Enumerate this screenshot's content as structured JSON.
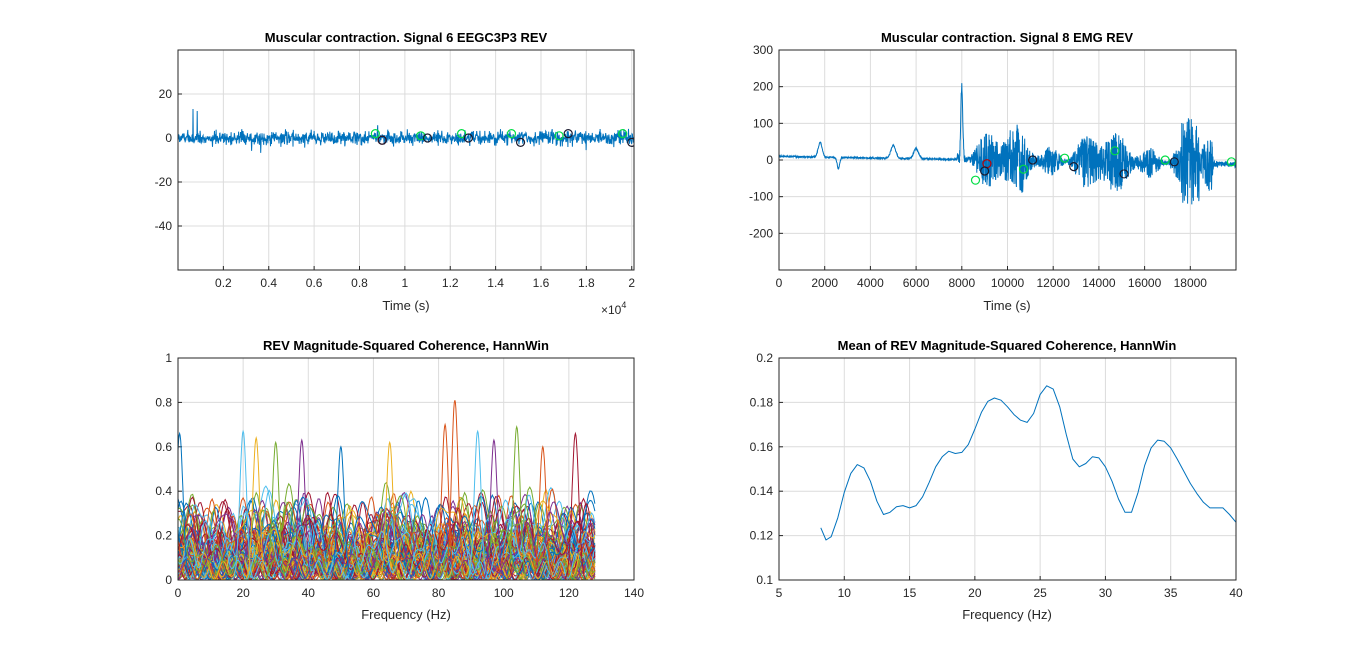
{
  "chart_data": [
    {
      "type": "line",
      "title": "Muscular contraction. Signal 6 EEGC3P3 REV",
      "xlabel": "Time (s)",
      "ylabel": "",
      "xlim": [
        0,
        20100
      ],
      "ylim": [
        -60,
        40
      ],
      "x_ticks": [
        2000,
        4000,
        6000,
        8000,
        10000,
        12000,
        14000,
        16000,
        18000,
        20000
      ],
      "x_tick_labels": [
        "0.2",
        "0.4",
        "0.6",
        "0.8",
        "1",
        "1.2",
        "1.4",
        "1.6",
        "1.8",
        "2"
      ],
      "x_exponent": "×10",
      "x_exponent_power": "4",
      "y_ticks": [
        -40,
        -20,
        0,
        20
      ],
      "y_tick_labels": [
        "-40",
        "-20",
        "0",
        "20"
      ],
      "grid": true,
      "series": [
        {
          "color": "#0072BD",
          "kind": "noise",
          "center": 0,
          "amplitude": 3
        }
      ],
      "markers": [
        {
          "color": "#00DD44",
          "x": [
            8700,
            10700,
            12500,
            14700,
            16800,
            19600
          ],
          "y": [
            2,
            1,
            2,
            2,
            1,
            2
          ]
        },
        {
          "color": "#C00000",
          "x": [
            9000
          ],
          "y": [
            -1
          ]
        },
        {
          "color": "#1a1a2e",
          "x": [
            9000,
            11000,
            12800,
            15100,
            17200,
            20000
          ],
          "y": [
            -1,
            0,
            0,
            -2,
            2,
            -2
          ]
        }
      ]
    },
    {
      "type": "line",
      "title": "Muscular contraction. Signal 8 EMG REV",
      "xlabel": "Time (s)",
      "ylabel": "",
      "xlim": [
        0,
        20000
      ],
      "ylim": [
        -300,
        300
      ],
      "x_ticks": [
        0,
        2000,
        4000,
        6000,
        8000,
        10000,
        12000,
        14000,
        16000,
        18000
      ],
      "x_tick_labels": [
        "0",
        "2000",
        "4000",
        "6000",
        "8000",
        "10000",
        "12000",
        "14000",
        "16000",
        "18000"
      ],
      "y_ticks": [
        -200,
        -100,
        0,
        100,
        200,
        300
      ],
      "y_tick_labels": [
        "-200",
        "-100",
        "0",
        "100",
        "200",
        "300"
      ],
      "grid": true,
      "series": [
        {
          "color": "#0072BD",
          "kind": "emg"
        }
      ],
      "markers": [
        {
          "color": "#00DD44",
          "x": [
            8600,
            10700,
            12500,
            14700,
            16900,
            19800
          ],
          "y": [
            -55,
            -25,
            5,
            25,
            0,
            -5
          ]
        },
        {
          "color": "#C00000",
          "x": [
            9100
          ],
          "y": [
            -10
          ]
        },
        {
          "color": "#1a1a2e",
          "x": [
            9000,
            11100,
            12900,
            15100,
            17300
          ],
          "y": [
            -30,
            0,
            -18,
            -38,
            -5
          ]
        }
      ]
    },
    {
      "type": "line",
      "title": "REV Magnitude-Squared Coherence, HannWin",
      "xlabel": "Frequency (Hz)",
      "ylabel": "",
      "xlim": [
        0,
        140
      ],
      "ylim": [
        0,
        1
      ],
      "x_ticks": [
        0,
        20,
        40,
        60,
        80,
        100,
        120,
        140
      ],
      "x_tick_labels": [
        "0",
        "20",
        "40",
        "60",
        "80",
        "100",
        "120",
        "140"
      ],
      "y_ticks": [
        0,
        0.2,
        0.4,
        0.6,
        0.8,
        1
      ],
      "y_tick_labels": [
        "0",
        "0.2",
        "0.4",
        "0.6",
        "0.8",
        "1"
      ],
      "grid": true,
      "series_count": 90,
      "x_max": 128,
      "colors": [
        "#0072BD",
        "#D95319",
        "#EDB120",
        "#7E2F8E",
        "#77AC30",
        "#4DBEEE",
        "#A2142F"
      ],
      "highlight_peaks": [
        {
          "x": 85,
          "y": 0.81,
          "color": "#D95319"
        },
        {
          "x": 82,
          "y": 0.7,
          "color": "#D95319"
        },
        {
          "x": 92,
          "y": 0.67,
          "color": "#4DBEEE"
        },
        {
          "x": 104,
          "y": 0.69,
          "color": "#77AC30"
        },
        {
          "x": 20,
          "y": 0.67,
          "color": "#4DBEEE"
        },
        {
          "x": 0.5,
          "y": 0.66,
          "color": "#0072BD"
        },
        {
          "x": 122,
          "y": 0.66,
          "color": "#A2142F"
        },
        {
          "x": 24,
          "y": 0.64,
          "color": "#EDB120"
        },
        {
          "x": 38,
          "y": 0.63,
          "color": "#7E2F8E"
        },
        {
          "x": 65,
          "y": 0.62,
          "color": "#EDB120"
        },
        {
          "x": 112,
          "y": 0.6,
          "color": "#D95319"
        },
        {
          "x": 50,
          "y": 0.6,
          "color": "#0072BD"
        },
        {
          "x": 30,
          "y": 0.62,
          "color": "#77AC30"
        },
        {
          "x": 97,
          "y": 0.63,
          "color": "#7E2F8E"
        }
      ]
    },
    {
      "type": "line",
      "title": "Mean of REV Magnitude-Squared Coherence, HannWin",
      "xlabel": "Frequency (Hz)",
      "ylabel": "",
      "xlim": [
        5,
        40
      ],
      "ylim": [
        0.1,
        0.2
      ],
      "x_ticks": [
        5,
        10,
        15,
        20,
        25,
        30,
        35,
        40
      ],
      "x_tick_labels": [
        "5",
        "10",
        "15",
        "20",
        "25",
        "30",
        "35",
        "40"
      ],
      "y_ticks": [
        0.1,
        0.12,
        0.14,
        0.16,
        0.18,
        0.2
      ],
      "y_tick_labels": [
        "0.1",
        "0.12",
        "0.14",
        "0.16",
        "0.18",
        "0.2"
      ],
      "grid": true,
      "series": [
        {
          "color": "#0072BD",
          "x": [
            8.2,
            8.6,
            9.0,
            9.5,
            10.0,
            10.5,
            11.0,
            11.5,
            12.0,
            12.5,
            13.0,
            13.5,
            14.0,
            14.5,
            15.0,
            15.5,
            16.0,
            16.5,
            17.0,
            17.5,
            18.0,
            18.5,
            19.0,
            19.5,
            20.0,
            20.5,
            21.0,
            21.5,
            22.0,
            22.5,
            23.0,
            23.5,
            24.0,
            24.5,
            25.0,
            25.5,
            26.0,
            26.5,
            27.0,
            27.5,
            28.0,
            28.5,
            29.0,
            29.5,
            30.0,
            30.5,
            31.0,
            31.5,
            32.0,
            32.5,
            33.0,
            33.5,
            34.0,
            34.5,
            35.0,
            35.5,
            36.0,
            36.5,
            37.0,
            37.5,
            38.0,
            38.5,
            39.0,
            39.5,
            40.0
          ],
          "y": [
            0.1235,
            0.118,
            0.1195,
            0.128,
            0.1395,
            0.148,
            0.152,
            0.1505,
            0.1445,
            0.1355,
            0.1295,
            0.1305,
            0.133,
            0.1335,
            0.1325,
            0.1335,
            0.1375,
            0.144,
            0.151,
            0.1555,
            0.158,
            0.157,
            0.1575,
            0.161,
            0.168,
            0.1755,
            0.1805,
            0.182,
            0.181,
            0.178,
            0.1745,
            0.172,
            0.171,
            0.175,
            0.1835,
            0.1875,
            0.186,
            0.178,
            0.1655,
            0.1545,
            0.151,
            0.1525,
            0.1555,
            0.155,
            0.151,
            0.1445,
            0.1365,
            0.1305,
            0.1305,
            0.1395,
            0.1515,
            0.1595,
            0.163,
            0.1625,
            0.1595,
            0.1545,
            0.149,
            0.1435,
            0.139,
            0.135,
            0.1325,
            0.1325,
            0.1325,
            0.1295,
            0.126
          ]
        }
      ]
    }
  ]
}
